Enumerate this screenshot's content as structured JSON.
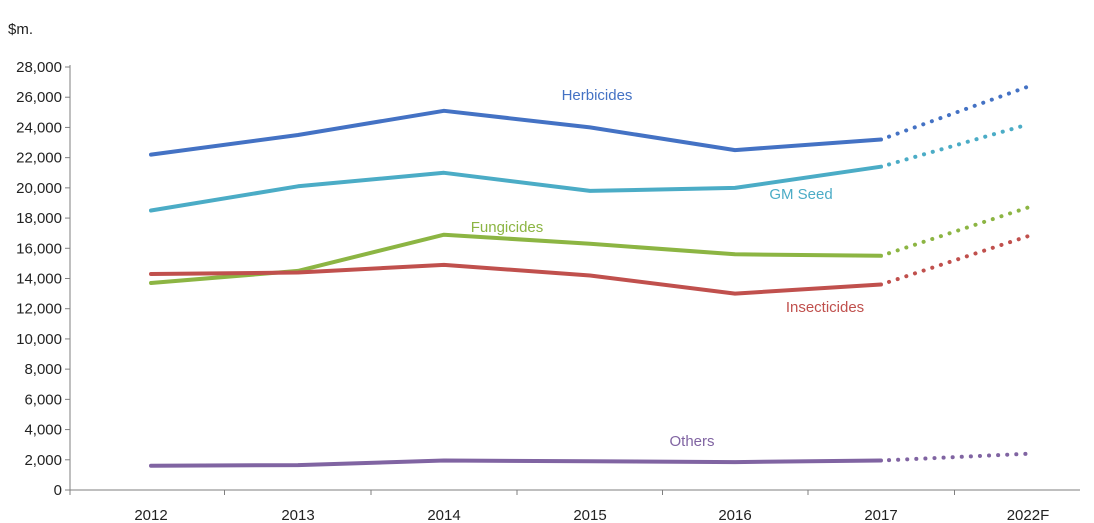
{
  "chart_data": {
    "type": "line",
    "ylabel": "$m.",
    "ylim": [
      0,
      28000
    ],
    "y_ticks": [
      0,
      2000,
      4000,
      6000,
      8000,
      10000,
      12000,
      14000,
      16000,
      18000,
      20000,
      22000,
      24000,
      26000,
      28000
    ],
    "y_tick_labels": [
      "0",
      "2,000",
      "4,000",
      "6,000",
      "8,000",
      "10,000",
      "12,000",
      "14,000",
      "16,000",
      "18,000",
      "20,000",
      "22,000",
      "24,000",
      "26,000",
      "28,000"
    ],
    "categories": [
      "2012",
      "2013",
      "2014",
      "2015",
      "2016",
      "2017",
      "2022F"
    ],
    "grid": false,
    "legend": "none",
    "forecast_from_index": 5,
    "series": [
      {
        "name": "Herbicides",
        "color": "#4472C4",
        "values": [
          22200,
          23500,
          25100,
          24000,
          22500,
          23200,
          26700
        ]
      },
      {
        "name": "GM Seed",
        "color": "#4BACC6",
        "values": [
          18500,
          20100,
          21000,
          19800,
          20000,
          21400,
          24200
        ]
      },
      {
        "name": "Fungicides",
        "color": "#8CB543",
        "values": [
          13700,
          14500,
          16900,
          16300,
          15600,
          15500,
          18700
        ]
      },
      {
        "name": "Insecticides",
        "color": "#C0504D",
        "values": [
          14300,
          14400,
          14900,
          14200,
          13000,
          13600,
          16800
        ]
      },
      {
        "name": "Others",
        "color": "#8064A2",
        "values": [
          1600,
          1650,
          1950,
          1900,
          1850,
          1950,
          2400
        ]
      }
    ]
  }
}
